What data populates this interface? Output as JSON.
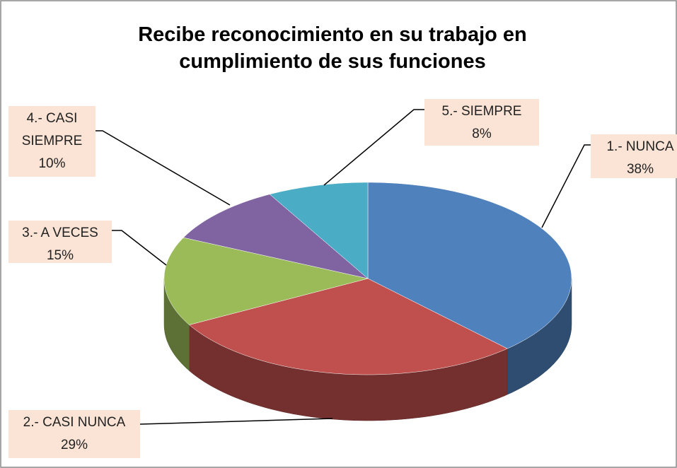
{
  "chart_data": {
    "type": "pie",
    "title": "Recibe reconocimiento en su trabajo en cumplimiento de sus funciones",
    "categories": [
      "1.- NUNCA",
      "2.- CASI NUNCA",
      "3.- A VECES",
      "4.- CASI SIEMPRE",
      "5.- SIEMPRE"
    ],
    "values": [
      38,
      29,
      15,
      10,
      8
    ],
    "value_labels": [
      "38%",
      "29%",
      "15%",
      "10%",
      "8%"
    ],
    "colors": [
      "#4f81bd",
      "#c0504d",
      "#9bbb59",
      "#8064a2",
      "#4bacc6"
    ]
  }
}
